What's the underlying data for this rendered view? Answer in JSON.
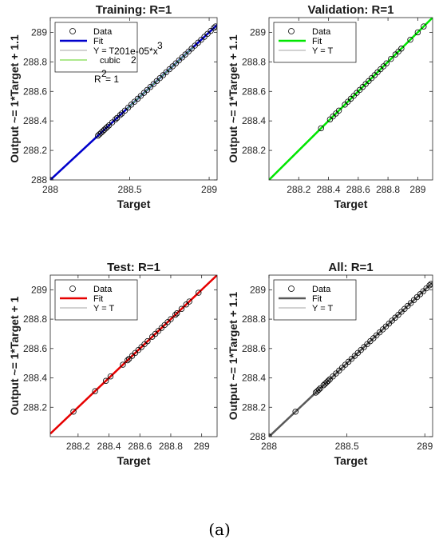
{
  "caption": "(a)",
  "chart_data": [
    {
      "type": "scatter",
      "title": "Training: R=1",
      "xlabel": "Target",
      "ylabel": "Output ~= 1*Target + 1.1",
      "xlim": [
        288.0,
        289.05
      ],
      "ylim": [
        288.0,
        289.1
      ],
      "xticks": [
        288,
        288.5,
        289
      ],
      "xticklabels": [
        "288",
        "288.5",
        "289"
      ],
      "yticks": [
        288,
        288.2,
        288.4,
        288.6,
        288.8,
        289
      ],
      "yticklabels": [
        "288",
        "288.2",
        "288.4",
        "288.6",
        "288.8",
        "289"
      ],
      "fit_color": "#0000cc",
      "grid": false,
      "legend_position": "top-left",
      "legend": [
        "Data",
        "Fit",
        "Y = T",
        "cubic"
      ],
      "annotation": [
        "201e-05*x",
        "3",
        "2",
        "R",
        "2",
        " = 1"
      ],
      "x": [
        288.0,
        288.3,
        288.31,
        288.32,
        288.33,
        288.34,
        288.35,
        288.36,
        288.37,
        288.39,
        288.41,
        288.42,
        288.44,
        288.45,
        288.47,
        288.49,
        288.51,
        288.53,
        288.55,
        288.57,
        288.59,
        288.61,
        288.63,
        288.65,
        288.67,
        288.69,
        288.71,
        288.73,
        288.75,
        288.77,
        288.79,
        288.81,
        288.83,
        288.85,
        288.87,
        288.89,
        288.91,
        288.93,
        288.95,
        288.97,
        288.99,
        289.01,
        289.03,
        289.04
      ],
      "y": [
        288.0,
        288.3,
        288.31,
        288.32,
        288.33,
        288.34,
        288.35,
        288.36,
        288.37,
        288.39,
        288.41,
        288.42,
        288.44,
        288.45,
        288.47,
        288.49,
        288.51,
        288.53,
        288.55,
        288.57,
        288.59,
        288.61,
        288.63,
        288.65,
        288.67,
        288.69,
        288.71,
        288.73,
        288.75,
        288.77,
        288.79,
        288.81,
        288.83,
        288.85,
        288.87,
        288.89,
        288.91,
        288.93,
        288.95,
        288.97,
        288.99,
        289.01,
        289.03,
        289.04
      ]
    },
    {
      "type": "scatter",
      "title": "Validation: R=1",
      "xlabel": "Target",
      "ylabel": "Output ~= 1*Target + 1.1",
      "xlim": [
        288.0,
        289.1
      ],
      "ylim": [
        288.0,
        289.1
      ],
      "xticks": [
        288.2,
        288.4,
        288.6,
        288.8,
        289
      ],
      "xticklabels": [
        "288.2",
        "288.4",
        "288.6",
        "288.8",
        "289"
      ],
      "yticks": [
        288.2,
        288.4,
        288.6,
        288.8,
        289
      ],
      "yticklabels": [
        "288.2",
        "288.4",
        "288.6",
        "288.8",
        "289"
      ],
      "fit_color": "#00e600",
      "grid": false,
      "legend_position": "top-left",
      "legend": [
        "Data",
        "Fit",
        "Y = T"
      ],
      "x": [
        288.35,
        288.41,
        288.43,
        288.45,
        288.47,
        288.51,
        288.53,
        288.55,
        288.57,
        288.59,
        288.61,
        288.63,
        288.65,
        288.67,
        288.69,
        288.71,
        288.73,
        288.75,
        288.77,
        288.79,
        288.82,
        288.85,
        288.87,
        288.89,
        288.95,
        289.0,
        289.04
      ],
      "y": [
        288.35,
        288.41,
        288.43,
        288.45,
        288.47,
        288.51,
        288.53,
        288.55,
        288.57,
        288.59,
        288.61,
        288.63,
        288.65,
        288.67,
        288.69,
        288.71,
        288.73,
        288.75,
        288.77,
        288.79,
        288.82,
        288.85,
        288.87,
        288.89,
        288.95,
        289.0,
        289.04
      ]
    },
    {
      "type": "scatter",
      "title": "Test: R=1",
      "xlabel": "Target",
      "ylabel": "Output ~= 1*Target + 1",
      "xlim": [
        288.02,
        289.1
      ],
      "ylim": [
        288.0,
        289.1
      ],
      "xticks": [
        288.2,
        288.4,
        288.6,
        288.8,
        289
      ],
      "xticklabels": [
        "288.2",
        "288.4",
        "288.6",
        "288.8",
        "289"
      ],
      "yticks": [
        288.2,
        288.4,
        288.6,
        288.8,
        289
      ],
      "yticklabels": [
        "288.2",
        "288.4",
        "288.6",
        "288.8",
        "289"
      ],
      "fit_color": "#e60000",
      "grid": false,
      "legend_position": "top-left",
      "legend": [
        "Data",
        "Fit",
        "Y = T"
      ],
      "x": [
        288.17,
        288.31,
        288.38,
        288.41,
        288.49,
        288.52,
        288.53,
        288.55,
        288.57,
        288.59,
        288.61,
        288.63,
        288.65,
        288.68,
        288.7,
        288.72,
        288.74,
        288.76,
        288.78,
        288.8,
        288.83,
        288.84,
        288.87,
        288.9,
        288.92,
        288.98
      ],
      "y": [
        288.17,
        288.31,
        288.38,
        288.41,
        288.49,
        288.52,
        288.53,
        288.55,
        288.57,
        288.59,
        288.61,
        288.63,
        288.65,
        288.68,
        288.7,
        288.72,
        288.74,
        288.76,
        288.78,
        288.8,
        288.83,
        288.84,
        288.87,
        288.9,
        288.92,
        288.98
      ]
    },
    {
      "type": "scatter",
      "title": "All: R=1",
      "xlabel": "Target",
      "ylabel": "Output ~= 1*Target + 1.1",
      "xlim": [
        288.0,
        289.05
      ],
      "ylim": [
        288.0,
        289.1
      ],
      "xticks": [
        288,
        288.5,
        289
      ],
      "xticklabels": [
        "288",
        "288.5",
        "289"
      ],
      "yticks": [
        288,
        288.2,
        288.4,
        288.6,
        288.8,
        289
      ],
      "yticklabels": [
        "288",
        "288.2",
        "288.4",
        "288.6",
        "288.8",
        "289"
      ],
      "fit_color": "#595959",
      "grid": false,
      "legend_position": "top-left",
      "legend": [
        "Data",
        "Fit",
        "Y = T"
      ],
      "x": [
        288.0,
        288.17,
        288.3,
        288.31,
        288.32,
        288.33,
        288.35,
        288.36,
        288.37,
        288.38,
        288.39,
        288.41,
        288.43,
        288.45,
        288.47,
        288.49,
        288.51,
        288.53,
        288.55,
        288.57,
        288.59,
        288.61,
        288.63,
        288.65,
        288.67,
        288.69,
        288.71,
        288.73,
        288.75,
        288.77,
        288.79,
        288.81,
        288.83,
        288.85,
        288.87,
        288.89,
        288.91,
        288.93,
        288.95,
        288.97,
        288.99,
        289.01,
        289.03,
        289.04
      ],
      "y": [
        288.0,
        288.17,
        288.3,
        288.31,
        288.32,
        288.33,
        288.35,
        288.36,
        288.37,
        288.38,
        288.39,
        288.41,
        288.43,
        288.45,
        288.47,
        288.49,
        288.51,
        288.53,
        288.55,
        288.57,
        288.59,
        288.61,
        288.63,
        288.65,
        288.67,
        288.69,
        288.71,
        288.73,
        288.75,
        288.77,
        288.79,
        288.81,
        288.83,
        288.85,
        288.87,
        288.89,
        288.91,
        288.93,
        288.95,
        288.97,
        288.99,
        289.01,
        289.03,
        289.04
      ]
    }
  ]
}
